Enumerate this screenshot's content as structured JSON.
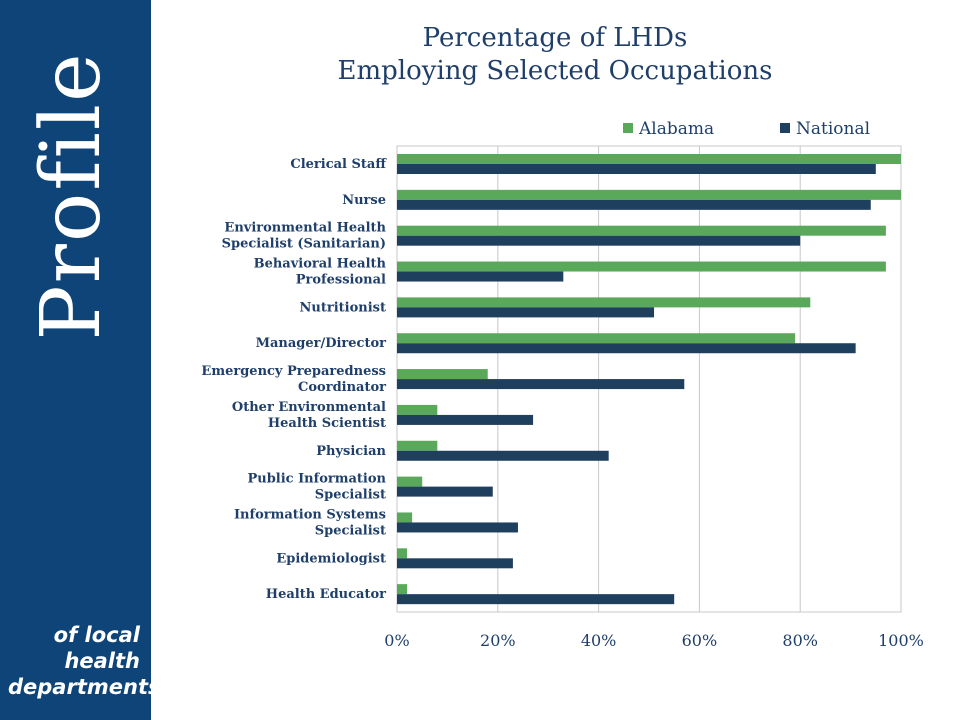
{
  "sidebar": {
    "brand": "Profile",
    "tagline": [
      "of local",
      "health",
      "departments"
    ]
  },
  "chart_data": {
    "type": "bar",
    "orientation": "horizontal",
    "title": [
      "Percentage of LHDs",
      "Employing Selected Occupations"
    ],
    "categories": [
      "Clerical Staff",
      "Nurse",
      "Environmental Health Specialist (Sanitarian)",
      "Behavioral Health Professional",
      "Nutritionist",
      "Manager/Director",
      "Emergency Preparedness Coordinator",
      "Other Environmental Health Scientist",
      "Physician",
      "Public Information Specialist",
      "Information Systems Specialist",
      "Epidemiologist",
      "Health Educator"
    ],
    "category_lines": [
      [
        "Clerical Staff"
      ],
      [
        "Nurse"
      ],
      [
        "Environmental Health",
        "Specialist (Sanitarian)"
      ],
      [
        "Behavioral Health",
        "Professional"
      ],
      [
        "Nutritionist"
      ],
      [
        "Manager/Director"
      ],
      [
        "Emergency Preparedness",
        "Coordinator"
      ],
      [
        "Other Environmental",
        "Health Scientist"
      ],
      [
        "Physician"
      ],
      [
        "Public Information",
        "Specialist"
      ],
      [
        "Information Systems",
        "Specialist"
      ],
      [
        "Epidemiologist"
      ],
      [
        "Health Educator"
      ]
    ],
    "series": [
      {
        "name": "Alabama",
        "color": "#5aa85a",
        "values": [
          100,
          100,
          97,
          97,
          82,
          79,
          18,
          8,
          8,
          5,
          3,
          2,
          2
        ]
      },
      {
        "name": "National",
        "color": "#1f3f5f",
        "values": [
          95,
          94,
          80,
          33,
          51,
          91,
          57,
          27,
          42,
          19,
          24,
          23,
          55
        ]
      }
    ],
    "xlim": [
      0,
      100
    ],
    "xticks": [
      "0%",
      "20%",
      "40%",
      "60%",
      "80%",
      "100%"
    ],
    "grid": true,
    "legend_position": "top-right"
  }
}
